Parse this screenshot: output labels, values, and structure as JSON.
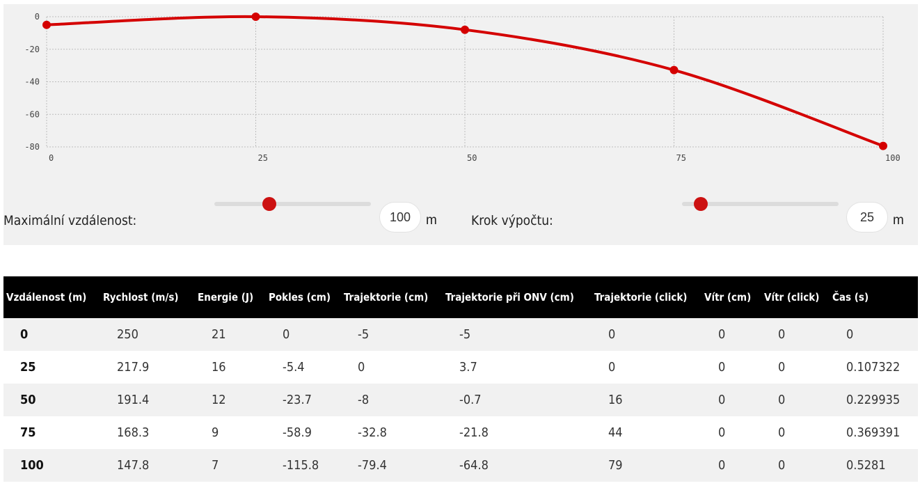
{
  "chart_data": {
    "type": "line",
    "x": [
      0,
      25,
      50,
      75,
      100
    ],
    "series": [
      {
        "values": [
          -5,
          0,
          -8,
          -32.8,
          -79.4
        ],
        "color": "#d40000"
      }
    ],
    "x_ticks": [
      "0",
      "25",
      "50",
      "75",
      "100"
    ],
    "y_ticks": [
      "0",
      "-20",
      "-40",
      "-60",
      "-80"
    ],
    "xlim": [
      0,
      100
    ],
    "ylim": [
      -80,
      0
    ],
    "grid": true
  },
  "controls": {
    "max_distance": {
      "label": "Maximální vzdálenost:",
      "value": "100",
      "unit": "m",
      "slider_fraction": 0.35
    },
    "step": {
      "label": "Krok výpočtu:",
      "value": "25",
      "unit": "m",
      "slider_fraction": 0.12
    }
  },
  "table": {
    "headers": [
      "Vzdálenost (m)",
      "Rychlost (m/s)",
      "Energie (J)",
      "Pokles (cm)",
      "Trajektorie (cm)",
      "Trajektorie při ONV (cm)",
      "Trajektorie (click)",
      "Vítr (cm)",
      "Vítr (click)",
      "Čas (s)"
    ],
    "rows": [
      [
        "0",
        "250",
        "21",
        "0",
        "-5",
        "-5",
        "0",
        "0",
        "0",
        "0"
      ],
      [
        "25",
        "217.9",
        "16",
        "-5.4",
        "0",
        "3.7",
        "0",
        "0",
        "0",
        "0.107322"
      ],
      [
        "50",
        "191.4",
        "12",
        "-23.7",
        "-8",
        "-0.7",
        "16",
        "0",
        "0",
        "0.229935"
      ],
      [
        "75",
        "168.3",
        "9",
        "-58.9",
        "-32.8",
        "-21.8",
        "44",
        "0",
        "0",
        "0.369391"
      ],
      [
        "100",
        "147.8",
        "7",
        "-115.8",
        "-79.4",
        "-64.8",
        "79",
        "0",
        "0",
        "0.5281"
      ]
    ]
  }
}
